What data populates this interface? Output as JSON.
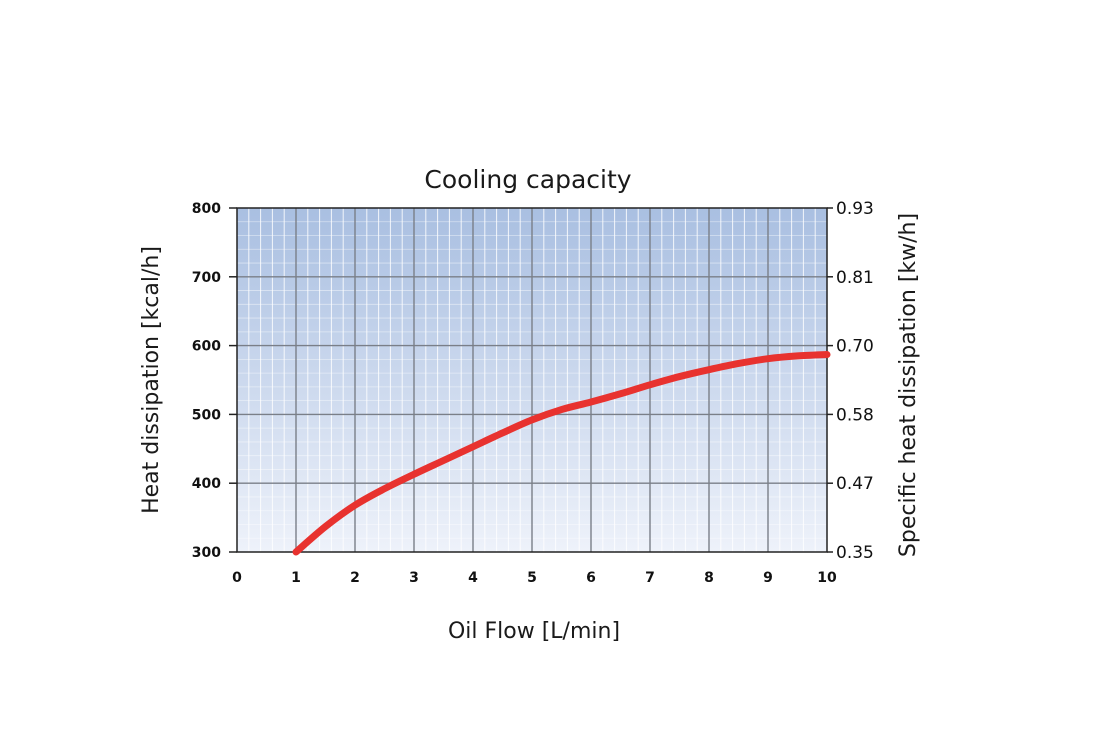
{
  "chart_data": {
    "type": "line",
    "title": "Cooling capacity",
    "xlabel": "Oil Flow [L/min]",
    "ylabel": "Heat dissipation [kcal/h]",
    "ylabel_right": "Specific heat dissipation [kw/h]",
    "xlim": [
      0,
      10
    ],
    "ylim": [
      300,
      800
    ],
    "x_ticks": [
      "0",
      "1",
      "2",
      "3",
      "4",
      "5",
      "6",
      "7",
      "8",
      "9",
      "10"
    ],
    "y_ticks": [
      "300",
      "400",
      "500",
      "600",
      "700",
      "800"
    ],
    "y_ticks_right": [
      "0.35",
      "0.47",
      "0.58",
      "0.70",
      "0.81",
      "0.93"
    ],
    "grid": true,
    "series": [
      {
        "color": "#e8322f",
        "x": [
          1,
          1.5,
          2,
          2.5,
          3,
          3.5,
          4,
          4.5,
          5,
          5.5,
          6,
          6.5,
          7,
          7.5,
          8,
          8.5,
          9,
          9.5,
          10
        ],
        "y": [
          300,
          337,
          368,
          392,
          413,
          433,
          453,
          473,
          492,
          507,
          518,
          530,
          543,
          555,
          565,
          574,
          581,
          585,
          587
        ]
      }
    ]
  }
}
